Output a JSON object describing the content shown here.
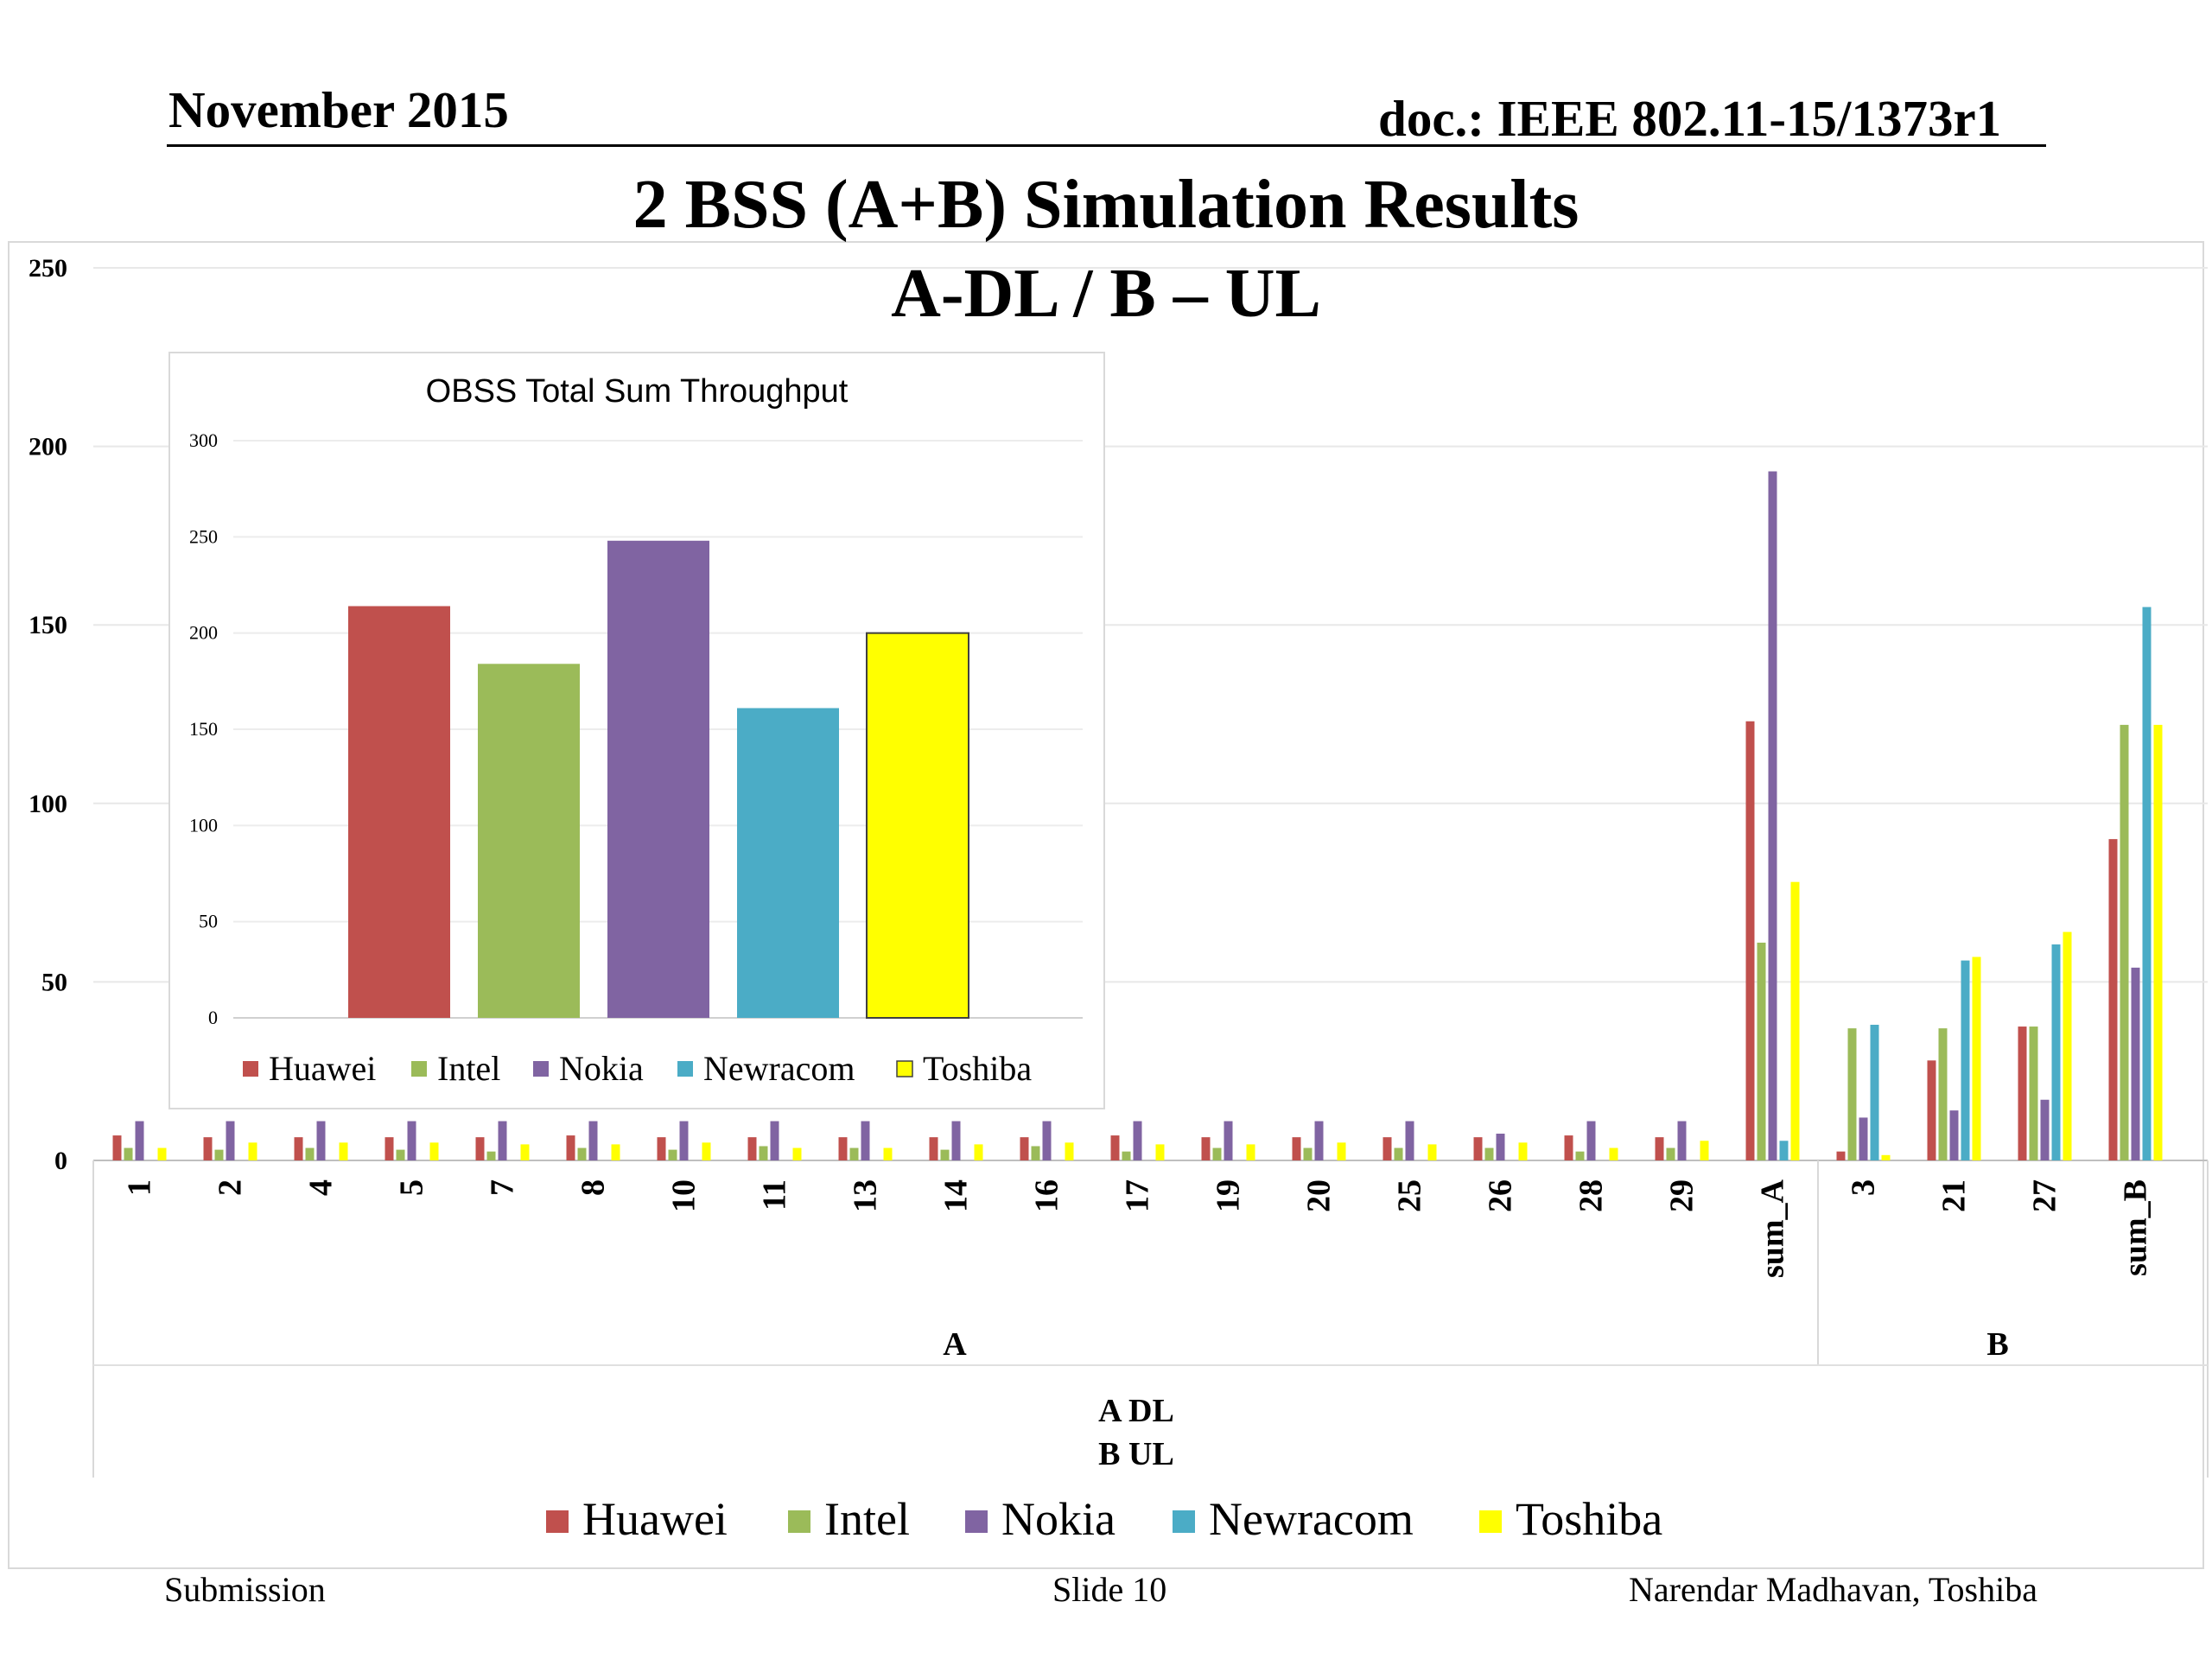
{
  "header": {
    "date": "November 2015",
    "doc": "doc.: IEEE 802.11-15/1373r1"
  },
  "slide": {
    "title_line1": "2 BSS (A+B) Simulation Results",
    "title_line2": "A-DL / B – UL"
  },
  "footer": {
    "left": "Submission",
    "center": "Slide 10",
    "right": "Narendar Madhavan, Toshiba"
  },
  "colors": {
    "Huawei": "#C0504D",
    "Intel": "#9BBB59",
    "Nokia": "#8064A2",
    "Newracom": "#4BACC6",
    "Toshiba": "#FFFF00"
  },
  "chart_data": [
    {
      "type": "bar",
      "title": "",
      "xlabel": "A DL\nB UL",
      "ylabel": "",
      "ylim": [
        0,
        250
      ],
      "yticks": [
        0,
        50,
        100,
        150,
        200,
        250
      ],
      "grid": true,
      "legend": "bottom",
      "groups": [
        {
          "name": "A",
          "categories": [
            "1",
            "2",
            "4",
            "5",
            "7",
            "8",
            "10",
            "11",
            "13",
            "14",
            "16",
            "17",
            "19",
            "20",
            "25",
            "26",
            "28",
            "29",
            "sum_A"
          ]
        },
        {
          "name": "B",
          "categories": [
            "3",
            "21",
            "27",
            "sum_B"
          ]
        }
      ],
      "categories": [
        "1",
        "2",
        "4",
        "5",
        "7",
        "8",
        "10",
        "11",
        "13",
        "14",
        "16",
        "17",
        "19",
        "20",
        "25",
        "26",
        "28",
        "29",
        "sum_A",
        "3",
        "21",
        "27",
        "sum_B"
      ],
      "series": [
        {
          "name": "Huawei",
          "values": [
            7,
            6.5,
            6.5,
            6.5,
            6.5,
            7,
            6.5,
            6.5,
            6.5,
            6.5,
            6.5,
            7,
            6.5,
            6.5,
            6.5,
            6.5,
            7,
            6.5,
            123,
            2.5,
            28,
            37.5,
            90
          ]
        },
        {
          "name": "Intel",
          "values": [
            3.5,
            3,
            3.5,
            3,
            2.5,
            3.5,
            3,
            4,
            3.5,
            3,
            4,
            2.5,
            3.5,
            3.5,
            3.5,
            3.5,
            2.5,
            3.5,
            61,
            37,
            37,
            37.5,
            122
          ]
        },
        {
          "name": "Nokia",
          "values": [
            11,
            11,
            11,
            11,
            11,
            11,
            11,
            11,
            11,
            11,
            11,
            11,
            11,
            11,
            11,
            7.5,
            11,
            11,
            193,
            12,
            14,
            17,
            54
          ]
        },
        {
          "name": "Newracom",
          "values": [
            0,
            0,
            0,
            0,
            0,
            0,
            0,
            0,
            0,
            0,
            0,
            0,
            0,
            0,
            0,
            0,
            0,
            0,
            5.5,
            38,
            56,
            60.5,
            155
          ]
        },
        {
          "name": "Toshiba",
          "values": [
            3.5,
            5,
            5,
            5,
            4.5,
            4.5,
            5,
            3.5,
            3.5,
            4.5,
            5,
            4.5,
            4.5,
            5,
            4.5,
            5,
            3.5,
            5.5,
            78,
            1.5,
            57,
            64,
            122
          ]
        }
      ]
    },
    {
      "type": "bar",
      "title": "OBSS Total Sum Throughput",
      "xlabel": "",
      "ylabel": "",
      "ylim": [
        0,
        300
      ],
      "yticks": [
        0,
        50,
        100,
        150,
        200,
        250,
        300
      ],
      "grid": true,
      "legend": "bottom",
      "categories": [
        "Huawei",
        "Intel",
        "Nokia",
        "Newracom",
        "Toshiba"
      ],
      "values": [
        214,
        184,
        248,
        161,
        200
      ]
    }
  ]
}
